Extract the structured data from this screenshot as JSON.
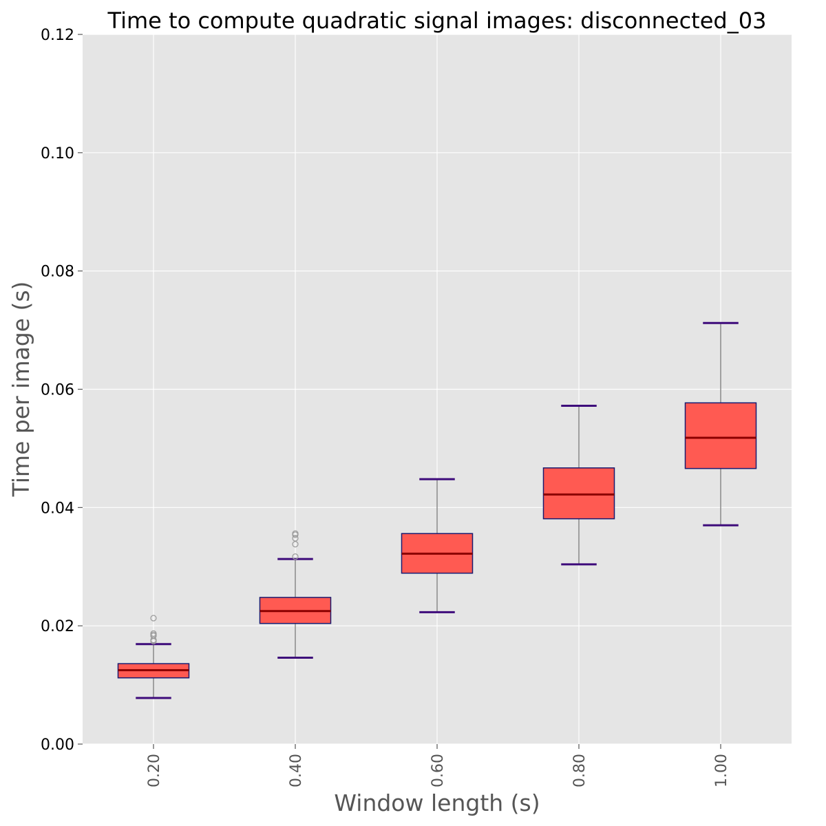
{
  "chart_data": {
    "type": "box",
    "title": "Time to compute quadratic signal images: disconnected_03",
    "xlabel": "Window length (s)",
    "ylabel": "Time per image (s)",
    "categories": [
      "0.20",
      "0.40",
      "0.60",
      "0.80",
      "1.00"
    ],
    "ylim": [
      0,
      0.12
    ],
    "yticks": [
      "0.00",
      "0.02",
      "0.04",
      "0.06",
      "0.08",
      "0.10",
      "0.12"
    ],
    "ytick_values": [
      0,
      0.02,
      0.04,
      0.06,
      0.08,
      0.1,
      0.12
    ],
    "grid": true,
    "boxes": [
      {
        "category": "0.20",
        "whisker_low": 0.0078,
        "q1": 0.0112,
        "median": 0.0125,
        "q3": 0.0136,
        "whisker_high": 0.0169,
        "outliers": [
          0.0213,
          0.0187,
          0.0185,
          0.0183,
          0.0176,
          0.0174
        ]
      },
      {
        "category": "0.40",
        "whisker_low": 0.0146,
        "q1": 0.0204,
        "median": 0.0225,
        "q3": 0.0248,
        "whisker_high": 0.0313,
        "outliers": [
          0.0356,
          0.0354,
          0.0348,
          0.0338,
          0.0317
        ]
      },
      {
        "category": "0.60",
        "whisker_low": 0.0223,
        "q1": 0.0289,
        "median": 0.0322,
        "q3": 0.0356,
        "whisker_high": 0.0448,
        "outliers": []
      },
      {
        "category": "0.80",
        "whisker_low": 0.0304,
        "q1": 0.0381,
        "median": 0.0422,
        "q3": 0.0467,
        "whisker_high": 0.0572,
        "outliers": []
      },
      {
        "category": "1.00",
        "whisker_low": 0.037,
        "q1": 0.0466,
        "median": 0.0518,
        "q3": 0.0577,
        "whisker_high": 0.0712,
        "outliers": []
      }
    ],
    "colors": {
      "plot_background": "#e5e5e5",
      "grid": "#ffffff",
      "box_fill": "#ff5a52",
      "box_edge": "#1a1a6e",
      "median": "#8b0000",
      "whisker": "#888888",
      "cap": "#3d0a7a",
      "outlier": "#999999"
    }
  }
}
